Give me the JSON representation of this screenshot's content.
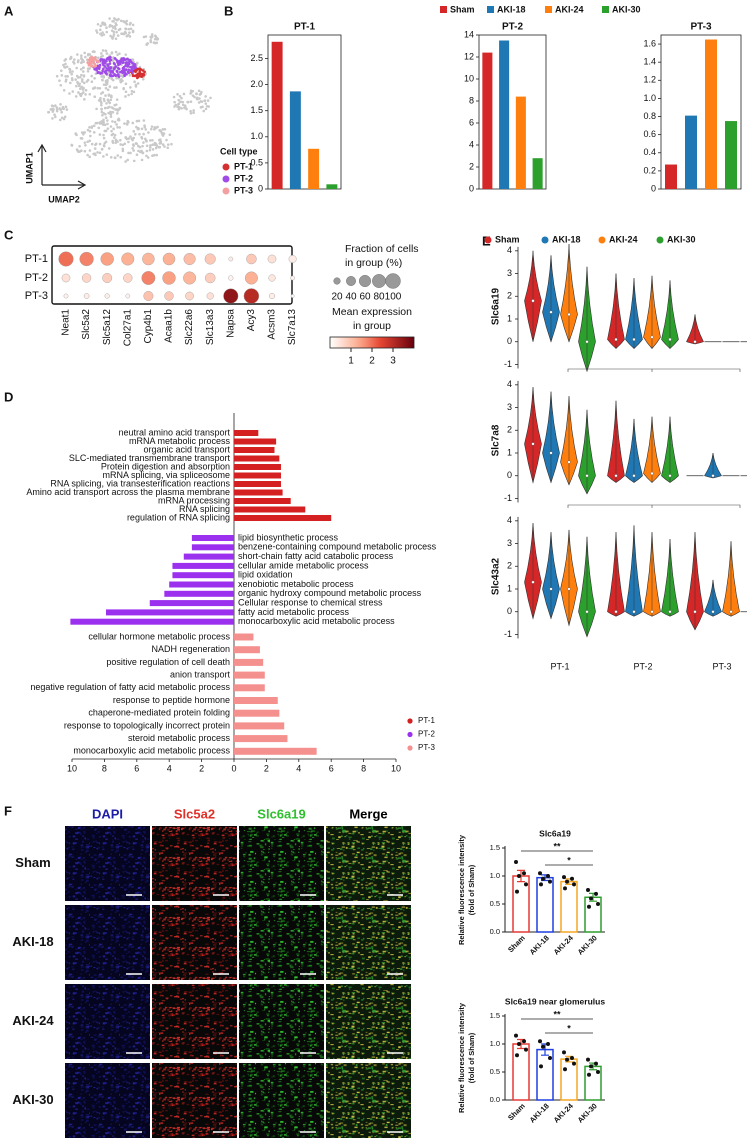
{
  "chart_data": [
    {
      "panel": "A",
      "type": "umap",
      "x_label": "UMAP2",
      "y_label": "UMAP1",
      "legend_title": "Cell type",
      "series": [
        {
          "name": "PT-1",
          "color": "#d62f2f"
        },
        {
          "name": "PT-2",
          "color": "#a04be8"
        },
        {
          "name": "PT-3",
          "color": "#f4a0a0"
        }
      ]
    },
    {
      "panel": "B",
      "type": "bar-group",
      "legend": [
        {
          "name": "Sham",
          "color": "#d62728"
        },
        {
          "name": "AKI-18",
          "color": "#1f77b4"
        },
        {
          "name": "AKI-24",
          "color": "#ff7f0e"
        },
        {
          "name": "AKI-30",
          "color": "#2ca02c"
        }
      ],
      "subplots": [
        {
          "title": "PT-1",
          "values": [
            2.82,
            1.87,
            0.77,
            0.09
          ],
          "ylim": [
            0,
            2.95
          ],
          "yticks": [
            0,
            0.5,
            {
              "value": 1,
              "label": "1.0"
            },
            1.5,
            {
              "value": 2,
              "label": "2.0"
            },
            2.5
          ]
        },
        {
          "title": "PT-2",
          "values": [
            12.4,
            13.5,
            8.4,
            2.8
          ],
          "ylim": [
            0,
            14
          ],
          "yticks": [
            0,
            2,
            4,
            6,
            8,
            10,
            12,
            14
          ]
        },
        {
          "title": "PT-3",
          "values": [
            0.27,
            0.81,
            1.65,
            0.75
          ],
          "ylim": [
            0,
            1.7
          ],
          "yticks": [
            0,
            0.2,
            0.4,
            0.6,
            0.8,
            {
              "value": 1,
              "label": "1.0"
            },
            1.2,
            1.4,
            1.6
          ]
        }
      ]
    },
    {
      "panel": "C",
      "type": "dotplot",
      "rows": [
        "PT-1",
        "PT-2",
        "PT-3"
      ],
      "genes": [
        "Neat1",
        "Slc5a2",
        "Slc5a12",
        "Col27a1",
        "Cyp4b1",
        "Acaa1b",
        "Slc22a6",
        "Slc13a3",
        "Napsa",
        "Acy3",
        "Acsm3",
        "Slc7a13"
      ],
      "size": [
        [
          95,
          85,
          75,
          70,
          65,
          65,
          60,
          50,
          8,
          45,
          30,
          25
        ],
        [
          30,
          35,
          40,
          35,
          80,
          75,
          70,
          45,
          10,
          70,
          20,
          8
        ],
        [
          8,
          12,
          10,
          8,
          40,
          35,
          30,
          20,
          95,
          100,
          15,
          5
        ]
      ],
      "expression": [
        [
          2.0,
          1.8,
          1.5,
          1.3,
          1.2,
          1.3,
          1.1,
          0.9,
          0.3,
          0.9,
          0.5,
          0.3
        ],
        [
          0.5,
          0.7,
          0.8,
          0.7,
          1.8,
          1.5,
          1.2,
          0.8,
          0.2,
          1.3,
          0.4,
          0.2
        ],
        [
          0.2,
          0.3,
          0.3,
          0.2,
          1.0,
          0.9,
          0.7,
          0.5,
          3.5,
          3.0,
          0.3,
          0.1
        ]
      ],
      "size_title": [
        "Fraction of cells",
        "in group (%)"
      ],
      "size_ticks": [
        20,
        40,
        60,
        80,
        100
      ],
      "color_title": [
        "Mean expression",
        "in group"
      ],
      "clim": [
        0,
        4
      ],
      "cticks": [
        1,
        2,
        3
      ]
    },
    {
      "panel": "D",
      "type": "diverging-barh",
      "xlim": [
        -10,
        10
      ],
      "xticks": [
        {
          "value": -10,
          "label": "10"
        },
        {
          "value": -8,
          "label": "8"
        },
        {
          "value": -6,
          "label": "6"
        },
        {
          "value": -4,
          "label": "4"
        },
        {
          "value": -2,
          "label": "2"
        },
        0,
        2,
        4,
        6,
        8,
        10
      ],
      "series": [
        {
          "name": "PT-1",
          "color": "#d42020",
          "terms": [
            "neutral amino acid transport",
            "mRNA metabolic process",
            "organic acid transport",
            "SLC-mediated transmembrane transport",
            "Protein digestion and absorption",
            "mRNA splicing, via spliceosome",
            "RNA splicing, via transesterification reactions",
            "Amino acid transport across the plasma membrane",
            "mRNA processing",
            "RNA splicing",
            "regulation of RNA splicing"
          ],
          "values": [
            1.5,
            2.6,
            2.5,
            2.8,
            2.9,
            2.9,
            2.9,
            3.0,
            3.5,
            4.4,
            6.0
          ]
        },
        {
          "name": "PT-2",
          "color": "#9b30ef",
          "terms": [
            "lipid biosynthetic process",
            "benzene-containing compound metabolic process",
            "short-chain fatty acid catabolic process",
            "cellular amide metabolic process",
            "lipid oxidation",
            "xenobiotic metabolic process",
            "organic hydroxy compound metabolic process",
            "Cellular response to chemical stress",
            "fatty acid metabolic process",
            "monocarboxylic acid metabolic process"
          ],
          "values": [
            -2.6,
            -2.6,
            -3.1,
            -3.8,
            -3.8,
            -4.0,
            -4.3,
            -5.2,
            -7.9,
            -10.1
          ]
        },
        {
          "name": "PT-3",
          "color": "#f4908e",
          "terms": [
            "cellular hormone metabolic process",
            "NADH regeneration",
            "positive regulation of cell death",
            "anion transport",
            "negative regulation of fatty acid metabolic process",
            "response to peptide hormone",
            "chaperone-mediated protein folding",
            "response to topologically incorrect protein",
            "steroid metabolic process",
            "monocarboxylic acid metabolic process"
          ],
          "values": [
            1.2,
            1.6,
            1.8,
            1.9,
            1.9,
            2.7,
            2.8,
            3.1,
            3.3,
            5.1
          ]
        }
      ]
    },
    {
      "panel": "E",
      "type": "violin",
      "legend": [
        {
          "name": "Sham",
          "color": "#d62728"
        },
        {
          "name": "AKI-18",
          "color": "#1f77b4"
        },
        {
          "name": "AKI-24",
          "color": "#ff7f0e"
        },
        {
          "name": "AKI-30",
          "color": "#2ca02c"
        }
      ],
      "groups": [
        "PT-1",
        "PT-2",
        "PT-3"
      ],
      "ylim": [
        -1.2,
        4.3
      ],
      "yticks": [
        -1,
        0,
        1,
        2,
        3,
        4
      ],
      "genes": [
        {
          "name": "Slc6a19",
          "violins": [
            [
              [
                0,
                1.8,
                4.0
              ],
              [
                0,
                1.3,
                3.8
              ],
              [
                0,
                1.2,
                4.3
              ],
              [
                -1.3,
                0,
                3.3
              ]
            ],
            [
              [
                -0.3,
                0.1,
                3.0
              ],
              [
                -0.3,
                0.1,
                2.8
              ],
              [
                -0.3,
                0.2,
                2.9
              ],
              [
                -0.3,
                0.1,
                2.7
              ]
            ],
            [
              [
                -0.1,
                0,
                1.2
              ],
              [
                0,
                0,
                0
              ],
              [
                0,
                0,
                0
              ],
              [
                0,
                0,
                0
              ]
            ]
          ]
        },
        {
          "name": "Slc7a8",
          "violins": [
            [
              [
                -0.3,
                1.4,
                3.9
              ],
              [
                -0.3,
                1.0,
                3.7
              ],
              [
                -0.4,
                0.6,
                3.5
              ],
              [
                -0.8,
                0,
                2.9
              ]
            ],
            [
              [
                -0.3,
                0,
                3.3
              ],
              [
                -0.3,
                0,
                2.5
              ],
              [
                -0.3,
                0.1,
                2.6
              ],
              [
                -0.3,
                0,
                2.6
              ]
            ],
            [
              [
                0,
                0,
                0
              ],
              [
                -0.1,
                0,
                1.0
              ],
              [
                0,
                0,
                0
              ],
              [
                0,
                0,
                0
              ]
            ]
          ]
        },
        {
          "name": "Slc43a2",
          "violins": [
            [
              [
                -0.3,
                1.3,
                3.9
              ],
              [
                -0.3,
                1.0,
                3.5
              ],
              [
                -0.6,
                1.0,
                3.6
              ],
              [
                -1.1,
                0,
                3.3
              ]
            ],
            [
              [
                -0.2,
                0,
                3.5
              ],
              [
                -0.2,
                0,
                3.8
              ],
              [
                -0.2,
                0,
                3.5
              ],
              [
                -0.2,
                0,
                3.2
              ]
            ],
            [
              [
                -0.8,
                0,
                3.5
              ],
              [
                -0.2,
                0,
                1.4
              ],
              [
                -0.2,
                0,
                3.1
              ],
              [
                0,
                0,
                0
              ]
            ]
          ]
        }
      ]
    },
    {
      "panel": "F",
      "type": "micrographs",
      "channels": [
        {
          "name": "DAPI",
          "color": "#1c1ca8"
        },
        {
          "name": "Slc5a2",
          "color": "#e0302a"
        },
        {
          "name": "Slc6a19",
          "color": "#2fbf2f"
        },
        {
          "name": "Merge",
          "color": "#000000"
        }
      ],
      "conditions": [
        "Sham",
        "AKI-18",
        "AKI-24",
        "AKI-30"
      ]
    },
    {
      "type": "bar-dots",
      "title": "Slc6a19",
      "y_label": [
        "Relative fluorescence intensity",
        "(fold of Sham)"
      ],
      "categories": [
        "Sham",
        "AKI-18",
        "AKI-24",
        "AKI-30"
      ],
      "colors": [
        "#e53935",
        "#1f3fe0",
        "#f5a623",
        "#2e9e2e"
      ],
      "values": [
        1.0,
        0.97,
        0.9,
        0.62
      ],
      "errors": [
        0.1,
        0.05,
        0.05,
        0.07
      ],
      "points": [
        [
          1.25,
          1.05,
          1.0,
          0.85,
          0.72
        ],
        [
          1.05,
          1.0,
          0.95,
          0.9,
          0.85
        ],
        [
          0.98,
          0.95,
          0.9,
          0.85,
          0.78
        ],
        [
          0.75,
          0.68,
          0.6,
          0.5,
          0.45
        ]
      ],
      "ylim": [
        0,
        1.5
      ],
      "yticks": [
        {
          "value": 0,
          "label": "0.0"
        },
        {
          "value": 0.5,
          "label": "0.5"
        },
        {
          "value": 1,
          "label": "1.0"
        },
        {
          "value": 1.5,
          "label": "1.5"
        }
      ],
      "significance": [
        {
          "label": "**",
          "between": [
            0,
            3
          ]
        },
        {
          "label": "*",
          "between": [
            1,
            3
          ]
        }
      ]
    },
    {
      "type": "bar-dots",
      "title": "Slc6a19 near glomerulus",
      "y_label": [
        "Relative fluorescence intensity",
        "(fold of Sham)"
      ],
      "categories": [
        "Sham",
        "AKI-18",
        "AKI-24",
        "AKI-30"
      ],
      "colors": [
        "#e53935",
        "#1f3fe0",
        "#f5a623",
        "#2e9e2e"
      ],
      "values": [
        1.0,
        0.9,
        0.73,
        0.6
      ],
      "errors": [
        0.08,
        0.1,
        0.05,
        0.06
      ],
      "points": [
        [
          1.15,
          1.05,
          1.0,
          0.9,
          0.8
        ],
        [
          1.05,
          1.0,
          0.95,
          0.75,
          0.6
        ],
        [
          0.85,
          0.75,
          0.72,
          0.65,
          0.55
        ],
        [
          0.72,
          0.65,
          0.6,
          0.5,
          0.45
        ]
      ],
      "ylim": [
        0,
        1.5
      ],
      "yticks": [
        {
          "value": 0,
          "label": "0.0"
        },
        {
          "value": 0.5,
          "label": "0.5"
        },
        {
          "value": 1,
          "label": "1.0"
        },
        {
          "value": 1.5,
          "label": "1.5"
        }
      ],
      "significance": [
        {
          "label": "**",
          "between": [
            0,
            3
          ]
        },
        {
          "label": "*",
          "between": [
            1,
            3
          ]
        }
      ]
    }
  ]
}
